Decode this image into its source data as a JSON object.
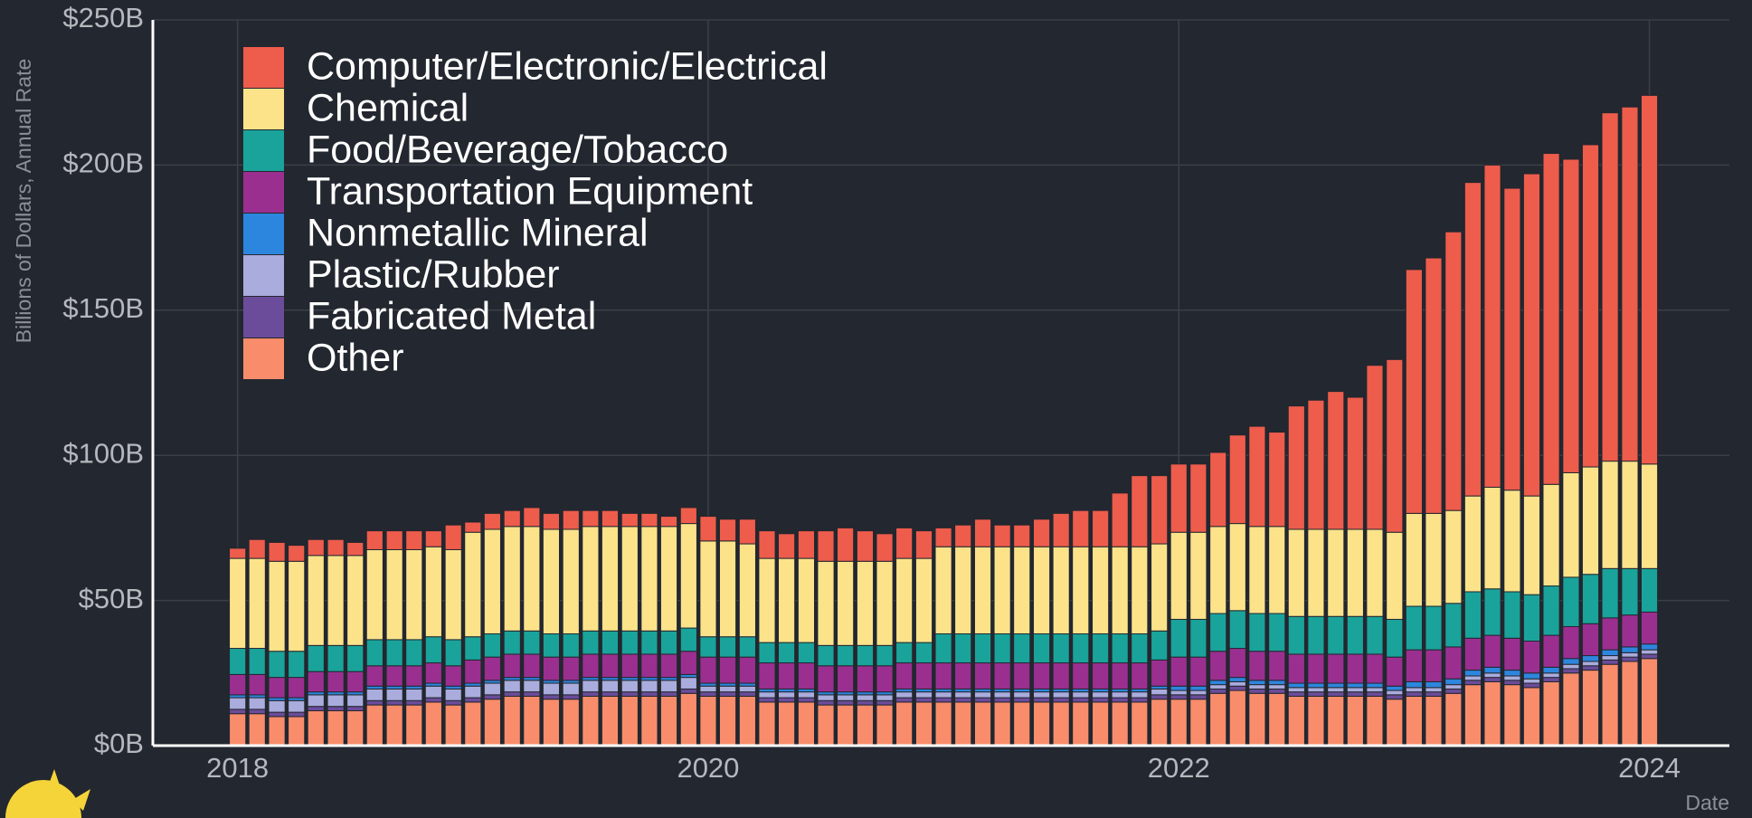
{
  "chart_data": {
    "type": "stacked_bar",
    "y_label": "Billions of Dollars, Annual Rate",
    "x_label": "Date",
    "legend": "upper left",
    "grid": true,
    "xlim": [
      2017.64,
      2024.34
    ],
    "xticks": [
      2018,
      2020,
      2022,
      2024
    ],
    "ylim": [
      0,
      250
    ],
    "yticks": [
      {
        "value": 0,
        "label": "$0B"
      },
      {
        "value": 50,
        "label": "$50B"
      },
      {
        "value": 100,
        "label": "$100B"
      },
      {
        "value": 150,
        "label": "$150B"
      },
      {
        "value": 200,
        "label": "$200B"
      },
      {
        "value": 250,
        "label": "$250B"
      }
    ],
    "x": [
      2018,
      2018.083,
      2018.167,
      2018.25,
      2018.333,
      2018.417,
      2018.5,
      2018.583,
      2018.667,
      2018.75,
      2018.833,
      2018.917,
      2019,
      2019.083,
      2019.167,
      2019.25,
      2019.333,
      2019.417,
      2019.5,
      2019.583,
      2019.667,
      2019.75,
      2019.833,
      2019.917,
      2020,
      2020.083,
      2020.167,
      2020.25,
      2020.333,
      2020.417,
      2020.5,
      2020.583,
      2020.667,
      2020.75,
      2020.833,
      2020.917,
      2021,
      2021.083,
      2021.167,
      2021.25,
      2021.333,
      2021.417,
      2021.5,
      2021.583,
      2021.667,
      2021.75,
      2021.833,
      2021.917,
      2022,
      2022.083,
      2022.167,
      2022.25,
      2022.333,
      2022.417,
      2022.5,
      2022.583,
      2022.667,
      2022.75,
      2022.833,
      2022.917,
      2023,
      2023.083,
      2023.167,
      2023.25,
      2023.333,
      2023.417,
      2023.5,
      2023.583,
      2023.667,
      2023.75,
      2023.833,
      2023.917,
      2024
    ],
    "series": [
      {
        "name": "Computer/Electronic/Electrical",
        "color": "#ee5c4c",
        "values": [
          3.5,
          6.5,
          6.5,
          5.5,
          5.5,
          5.5,
          4.5,
          6.5,
          6.5,
          6.5,
          5.5,
          8.5,
          3.5,
          5.5,
          5.5,
          6.5,
          5.5,
          6.5,
          5.5,
          5.5,
          4.5,
          4.5,
          3.5,
          5.5,
          8.5,
          7.5,
          8.5,
          9.5,
          8.5,
          9.5,
          10.5,
          11.5,
          10.5,
          9.5,
          10.5,
          9.5,
          6.5,
          7.5,
          9.5,
          7.5,
          7.5,
          9.5,
          11.5,
          12.5,
          12.5,
          18.5,
          24.5,
          23.5,
          23.5,
          23.5,
          25.5,
          30.5,
          34.5,
          32.5,
          42.5,
          44.5,
          47.5,
          45.5,
          56.5,
          59.5,
          84,
          88,
          96,
          108,
          111,
          104,
          111,
          114,
          108,
          111,
          120,
          122,
          127
        ]
      },
      {
        "name": "Chemical",
        "color": "#fce38a",
        "values": [
          31,
          31,
          31,
          31,
          31,
          31,
          31,
          31,
          31,
          31,
          31,
          31,
          36,
          36,
          36,
          36,
          36,
          36,
          36,
          36,
          36,
          36,
          36,
          36,
          33,
          33,
          32,
          29,
          29,
          29,
          29,
          29,
          29,
          29,
          29,
          29,
          30,
          30,
          30,
          30,
          30,
          30,
          30,
          30,
          30,
          30,
          30,
          30,
          30,
          30,
          30,
          30,
          30,
          30,
          30,
          30,
          30,
          30,
          30,
          30,
          32,
          32,
          32,
          33,
          35,
          35,
          34,
          35,
          36,
          37,
          37,
          37,
          36
        ]
      },
      {
        "name": "Food/Beverage/Tobacco",
        "color": "#1aa39a",
        "values": [
          9,
          9,
          9,
          9,
          9,
          9,
          9,
          9,
          9,
          9,
          9,
          9,
          8,
          8,
          8,
          8,
          8,
          8,
          8,
          8,
          8,
          8,
          8,
          8,
          7,
          7,
          7,
          7,
          7,
          7,
          7,
          7,
          7,
          7,
          7,
          7,
          10,
          10,
          10,
          10,
          10,
          10,
          10,
          10,
          10,
          10,
          10,
          10,
          13,
          13,
          13,
          13,
          13,
          13,
          13,
          13,
          13,
          13,
          13,
          13,
          15,
          15,
          15,
          16,
          16,
          16,
          16,
          17,
          17,
          17,
          17,
          16,
          15
        ]
      },
      {
        "name": "Transportation Equipment",
        "color": "#9b2f90",
        "values": [
          7,
          7,
          7,
          7,
          7,
          7,
          7,
          7,
          7,
          7,
          7,
          7,
          8,
          8,
          8,
          8,
          8,
          8,
          8,
          8,
          8,
          8,
          8,
          8,
          9,
          9,
          9,
          9,
          9,
          9,
          9,
          9,
          9,
          9,
          9,
          9,
          9,
          9,
          9,
          9,
          9,
          9,
          9,
          9,
          9,
          9,
          9,
          9,
          10,
          10,
          10,
          10,
          10,
          10,
          10,
          10,
          10,
          10,
          10,
          10,
          11,
          11,
          11,
          11,
          11,
          11,
          11,
          11,
          11,
          11,
          11,
          11,
          11
        ]
      },
      {
        "name": "Nonmetallic Mineral",
        "color": "#2d86de",
        "values": [
          1,
          1,
          1,
          1,
          1,
          1,
          1,
          1,
          1,
          1,
          1,
          1,
          1,
          1,
          1,
          1,
          1,
          1,
          1,
          1,
          1,
          1,
          1,
          1,
          1,
          1,
          1,
          1,
          1,
          1,
          1,
          1,
          1,
          1,
          1,
          1,
          1,
          1,
          1,
          1,
          1,
          1,
          1,
          1,
          1,
          1,
          1,
          1,
          1.5,
          1.5,
          1.5,
          1.5,
          1.5,
          1.5,
          1.5,
          1.5,
          1.5,
          1.5,
          1.5,
          1.5,
          2,
          2,
          2,
          2,
          2,
          2,
          2,
          2,
          2,
          2,
          2,
          2,
          2
        ]
      },
      {
        "name": "Plastic/Rubber",
        "color": "#a9acdc",
        "values": [
          4,
          4,
          4,
          4,
          4,
          4,
          4,
          4,
          4,
          4,
          4,
          4,
          4,
          4,
          4,
          4,
          4,
          4,
          4,
          4,
          4,
          4,
          4,
          4,
          2,
          2,
          2,
          2,
          2,
          2,
          2,
          2,
          2,
          2,
          2,
          2,
          2,
          2,
          2,
          2,
          2,
          2,
          2,
          2,
          2,
          2,
          2,
          2,
          1.5,
          1.5,
          1.5,
          1.5,
          1.5,
          1.5,
          1.5,
          1.5,
          1.5,
          1.5,
          1.5,
          1.5,
          1.5,
          1.5,
          1.5,
          1.5,
          1.5,
          1.5,
          1.5,
          1.5,
          1.5,
          1.5,
          1.5,
          1.5,
          1.5
        ]
      },
      {
        "name": "Fabricated Metal",
        "color": "#6b4c9a",
        "values": [
          1.5,
          1.5,
          1.5,
          1.5,
          1.5,
          1.5,
          1.5,
          1.5,
          1.5,
          1.5,
          1.5,
          1.5,
          1.5,
          1.5,
          1.5,
          1.5,
          1.5,
          1.5,
          1.5,
          1.5,
          1.5,
          1.5,
          1.5,
          1.5,
          1.5,
          1.5,
          1.5,
          1.5,
          1.5,
          1.5,
          1.5,
          1.5,
          1.5,
          1.5,
          1.5,
          1.5,
          1.5,
          1.5,
          1.5,
          1.5,
          1.5,
          1.5,
          1.5,
          1.5,
          1.5,
          1.5,
          1.5,
          1.5,
          1.5,
          1.5,
          1.5,
          1.5,
          1.5,
          1.5,
          1.5,
          1.5,
          1.5,
          1.5,
          1.5,
          1.5,
          1.5,
          1.5,
          1.5,
          1.5,
          1.5,
          1.5,
          1.5,
          1.5,
          1.5,
          1.5,
          1.5,
          1.5,
          1.5
        ]
      },
      {
        "name": "Other",
        "color": "#f98d6b",
        "values": [
          11,
          11,
          10,
          10,
          12,
          12,
          12,
          14,
          14,
          14,
          15,
          14,
          15,
          16,
          17,
          17,
          16,
          16,
          17,
          17,
          17,
          17,
          17,
          18,
          17,
          17,
          17,
          15,
          15,
          15,
          14,
          14,
          14,
          14,
          15,
          15,
          15,
          15,
          15,
          15,
          15,
          15,
          15,
          15,
          15,
          15,
          15,
          16,
          16,
          16,
          18,
          19,
          18,
          18,
          17,
          17,
          17,
          17,
          17,
          16,
          17,
          17,
          18,
          21,
          22,
          21,
          20,
          22,
          25,
          26,
          28,
          29,
          30
        ]
      }
    ]
  }
}
